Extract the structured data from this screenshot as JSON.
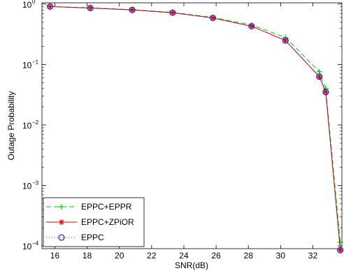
{
  "chart_data": {
    "type": "line",
    "xlabel": "SNR(dB)",
    "ylabel": "Outage Probability",
    "xlim": [
      15.2,
      33.8
    ],
    "ylim": [
      9e-05,
      1.05
    ],
    "yscale": "log",
    "grid": false,
    "legend_position": "bottom-left",
    "x_ticks": [
      {
        "value": 16,
        "label": "16"
      },
      {
        "value": 18,
        "label": "18"
      },
      {
        "value": 20,
        "label": "20"
      },
      {
        "value": 22,
        "label": "22"
      },
      {
        "value": 24,
        "label": "24"
      },
      {
        "value": 26,
        "label": "26"
      },
      {
        "value": 28,
        "label": "28"
      },
      {
        "value": 30,
        "label": "30"
      },
      {
        "value": 32,
        "label": "32"
      }
    ],
    "y_ticks": [
      {
        "value": 1,
        "base": "10",
        "exp": "0"
      },
      {
        "value": 0.1,
        "base": "10",
        "exp": "−1"
      },
      {
        "value": 0.01,
        "base": "10",
        "exp": "−2"
      },
      {
        "value": 0.001,
        "base": "10",
        "exp": "−3"
      },
      {
        "value": 0.0001,
        "base": "10",
        "exp": "−4"
      }
    ],
    "x": [
      15.7,
      18.2,
      20.8,
      23.3,
      25.8,
      28.2,
      30.3,
      32.4,
      32.8,
      33.7
    ],
    "series": [
      {
        "name": "EPPC+EPPR",
        "color": "#00cc00",
        "dash": "7,4",
        "marker": "plus",
        "values": [
          0.91,
          0.87,
          0.81,
          0.73,
          0.6,
          0.45,
          0.28,
          0.076,
          0.04,
          0.000115
        ]
      },
      {
        "name": "EPPC+ZPiOR",
        "color": "#dd0000",
        "dash": "",
        "marker": "star",
        "values": [
          0.91,
          0.86,
          0.8,
          0.72,
          0.59,
          0.43,
          0.25,
          0.063,
          0.035,
          8.5e-05
        ]
      },
      {
        "name": "EPPC",
        "color": "#2222cc",
        "dash": "1,3",
        "marker": "circle",
        "values": [
          0.91,
          0.86,
          0.8,
          0.72,
          0.59,
          0.43,
          0.25,
          0.063,
          0.035,
          8.5e-05
        ]
      }
    ]
  }
}
